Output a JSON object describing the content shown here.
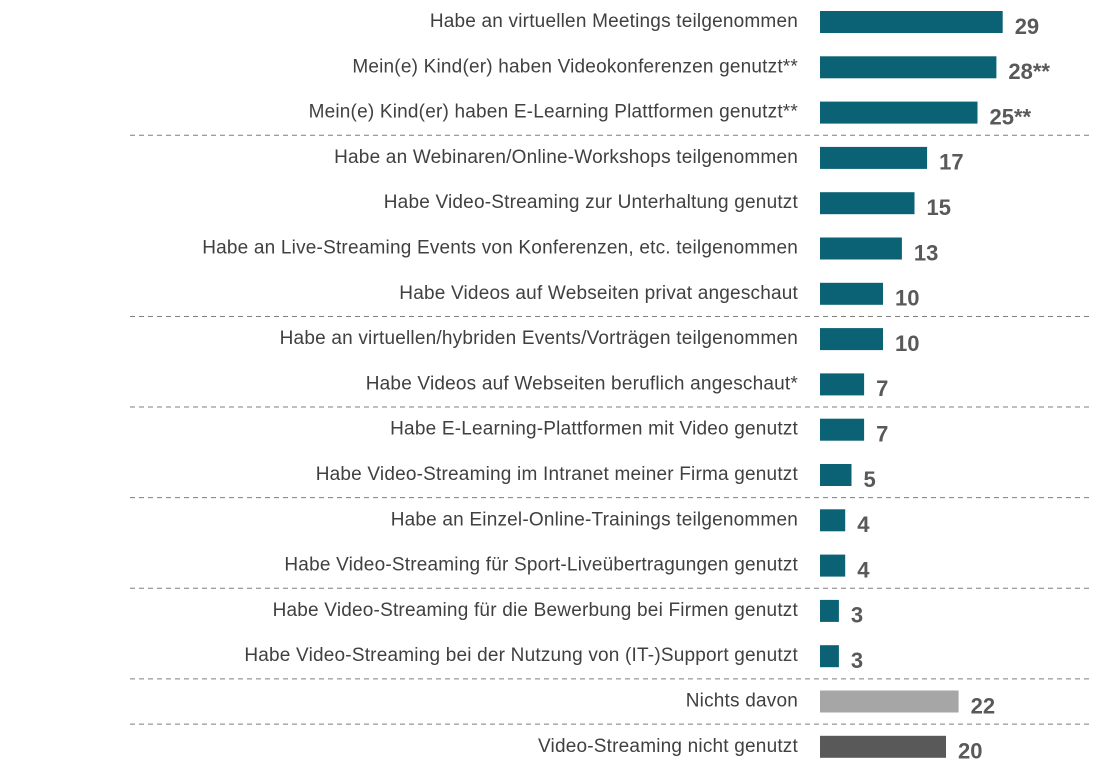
{
  "chart_data": {
    "type": "bar",
    "orientation": "horizontal",
    "categories": [
      "Habe an virtuellen Meetings teilgenommen",
      "Mein(e) Kind(er) haben Videokonferenzen genutzt**",
      "Mein(e) Kind(er) haben E-Learning Plattformen genutzt**",
      "Habe an Webinaren/Online-Workshops teilgenommen",
      "Habe Video-Streaming zur Unterhaltung genutzt",
      "Habe an Live-Streaming Events von Konferenzen, etc. teilgenommen",
      "Habe Videos auf Webseiten privat angeschaut",
      "Habe an virtuellen/hybriden Events/Vorträgen teilgenommen",
      "Habe Videos auf Webseiten beruflich angeschaut*",
      "Habe E-Learning-Plattformen mit Video genutzt",
      "Habe Video-Streaming im Intranet meiner Firma genutzt",
      "Habe an Einzel-Online-Trainings teilgenommen",
      "Habe Video-Streaming für Sport-Liveübertragungen genutzt",
      "Habe Video-Streaming für die Bewerbung bei Firmen genutzt",
      "Habe Video-Streaming bei der Nutzung von (IT-)Support genutzt",
      "Nichts davon",
      "Video-Streaming nicht genutzt"
    ],
    "values": [
      29,
      28,
      25,
      17,
      15,
      13,
      10,
      10,
      7,
      7,
      5,
      4,
      4,
      3,
      3,
      22,
      20
    ],
    "value_labels": [
      "29",
      "28**",
      "25**",
      "17",
      "15",
      "13",
      "10",
      "10",
      "7",
      "7",
      "5",
      "4",
      "4",
      "3",
      "3",
      "22",
      "20"
    ],
    "colors": [
      "#0b6274",
      "#0b6274",
      "#0b6274",
      "#0b6274",
      "#0b6274",
      "#0b6274",
      "#0b6274",
      "#0b6274",
      "#0b6274",
      "#0b6274",
      "#0b6274",
      "#0b6274",
      "#0b6274",
      "#0b6274",
      "#0b6274",
      "#a6a6a6",
      "#595959"
    ]
  }
}
